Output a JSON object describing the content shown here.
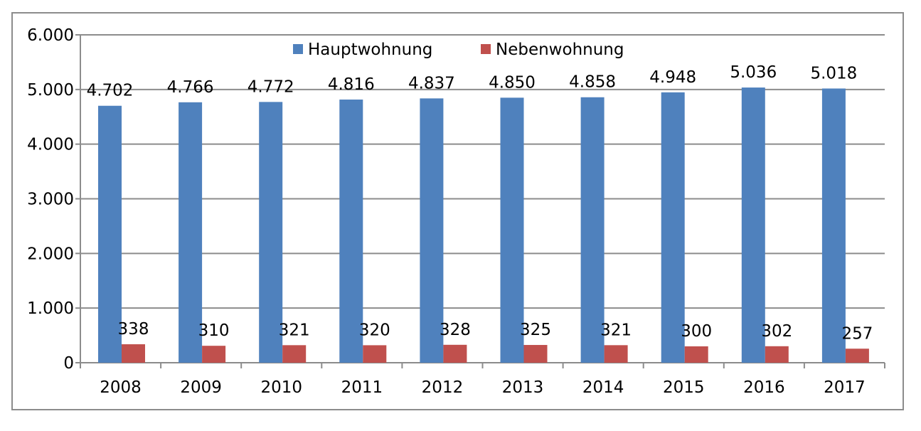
{
  "chart_data": {
    "type": "bar",
    "categories": [
      "2008",
      "2009",
      "2010",
      "2011",
      "2012",
      "2013",
      "2014",
      "2015",
      "2016",
      "2017"
    ],
    "series": [
      {
        "name": "Hauptwohnung",
        "color": "#4f81bd",
        "values": [
          4702,
          4766,
          4772,
          4816,
          4837,
          4850,
          4858,
          4948,
          5036,
          5018
        ],
        "labels": [
          "4.702",
          "4.766",
          "4.772",
          "4.816",
          "4.837",
          "4.850",
          "4.858",
          "4.948",
          "5.036",
          "5.018"
        ]
      },
      {
        "name": "Nebenwohnung",
        "color": "#c0504d",
        "values": [
          338,
          310,
          321,
          320,
          328,
          325,
          321,
          300,
          302,
          257
        ],
        "labels": [
          "338",
          "310",
          "321",
          "320",
          "328",
          "325",
          "321",
          "300",
          "302",
          "257"
        ]
      }
    ],
    "yticks": [
      0,
      1000,
      2000,
      3000,
      4000,
      5000,
      6000
    ],
    "ytick_labels": [
      "0",
      "1.000",
      "2.000",
      "3.000",
      "4.000",
      "5.000",
      "6.000"
    ],
    "ylim": [
      0,
      6000
    ],
    "grid": true,
    "legend_position": "top"
  }
}
